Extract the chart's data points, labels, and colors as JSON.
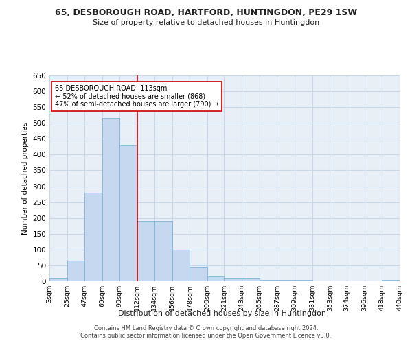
{
  "title1": "65, DESBOROUGH ROAD, HARTFORD, HUNTINGDON, PE29 1SW",
  "title2": "Size of property relative to detached houses in Huntingdon",
  "xlabel": "Distribution of detached houses by size in Huntingdon",
  "ylabel": "Number of detached properties",
  "bar_color": "#c5d8f0",
  "bar_edge_color": "#7fb5d8",
  "bins": [
    3,
    25,
    47,
    69,
    90,
    112,
    134,
    156,
    178,
    200,
    221,
    243,
    265,
    287,
    309,
    331,
    353,
    374,
    396,
    418,
    440
  ],
  "heights": [
    10,
    65,
    280,
    515,
    430,
    190,
    190,
    100,
    45,
    15,
    10,
    10,
    5,
    5,
    5,
    0,
    0,
    0,
    0,
    5,
    0
  ],
  "tick_labels": [
    "3sqm",
    "25sqm",
    "47sqm",
    "69sqm",
    "90sqm",
    "112sqm",
    "134sqm",
    "156sqm",
    "178sqm",
    "200sqm",
    "221sqm",
    "243sqm",
    "265sqm",
    "287sqm",
    "309sqm",
    "331sqm",
    "353sqm",
    "374sqm",
    "396sqm",
    "418sqm",
    "440sqm"
  ],
  "vline_x": 113,
  "vline_color": "#cc0000",
  "annotation_text": "65 DESBOROUGH ROAD: 113sqm\n← 52% of detached houses are smaller (868)\n47% of semi-detached houses are larger (790) →",
  "ylim": [
    0,
    650
  ],
  "yticks": [
    0,
    50,
    100,
    150,
    200,
    250,
    300,
    350,
    400,
    450,
    500,
    550,
    600,
    650
  ],
  "grid_color": "#c8d8e8",
  "bg_color": "#e8eff7",
  "footer1": "Contains HM Land Registry data © Crown copyright and database right 2024.",
  "footer2": "Contains public sector information licensed under the Open Government Licence v3.0."
}
